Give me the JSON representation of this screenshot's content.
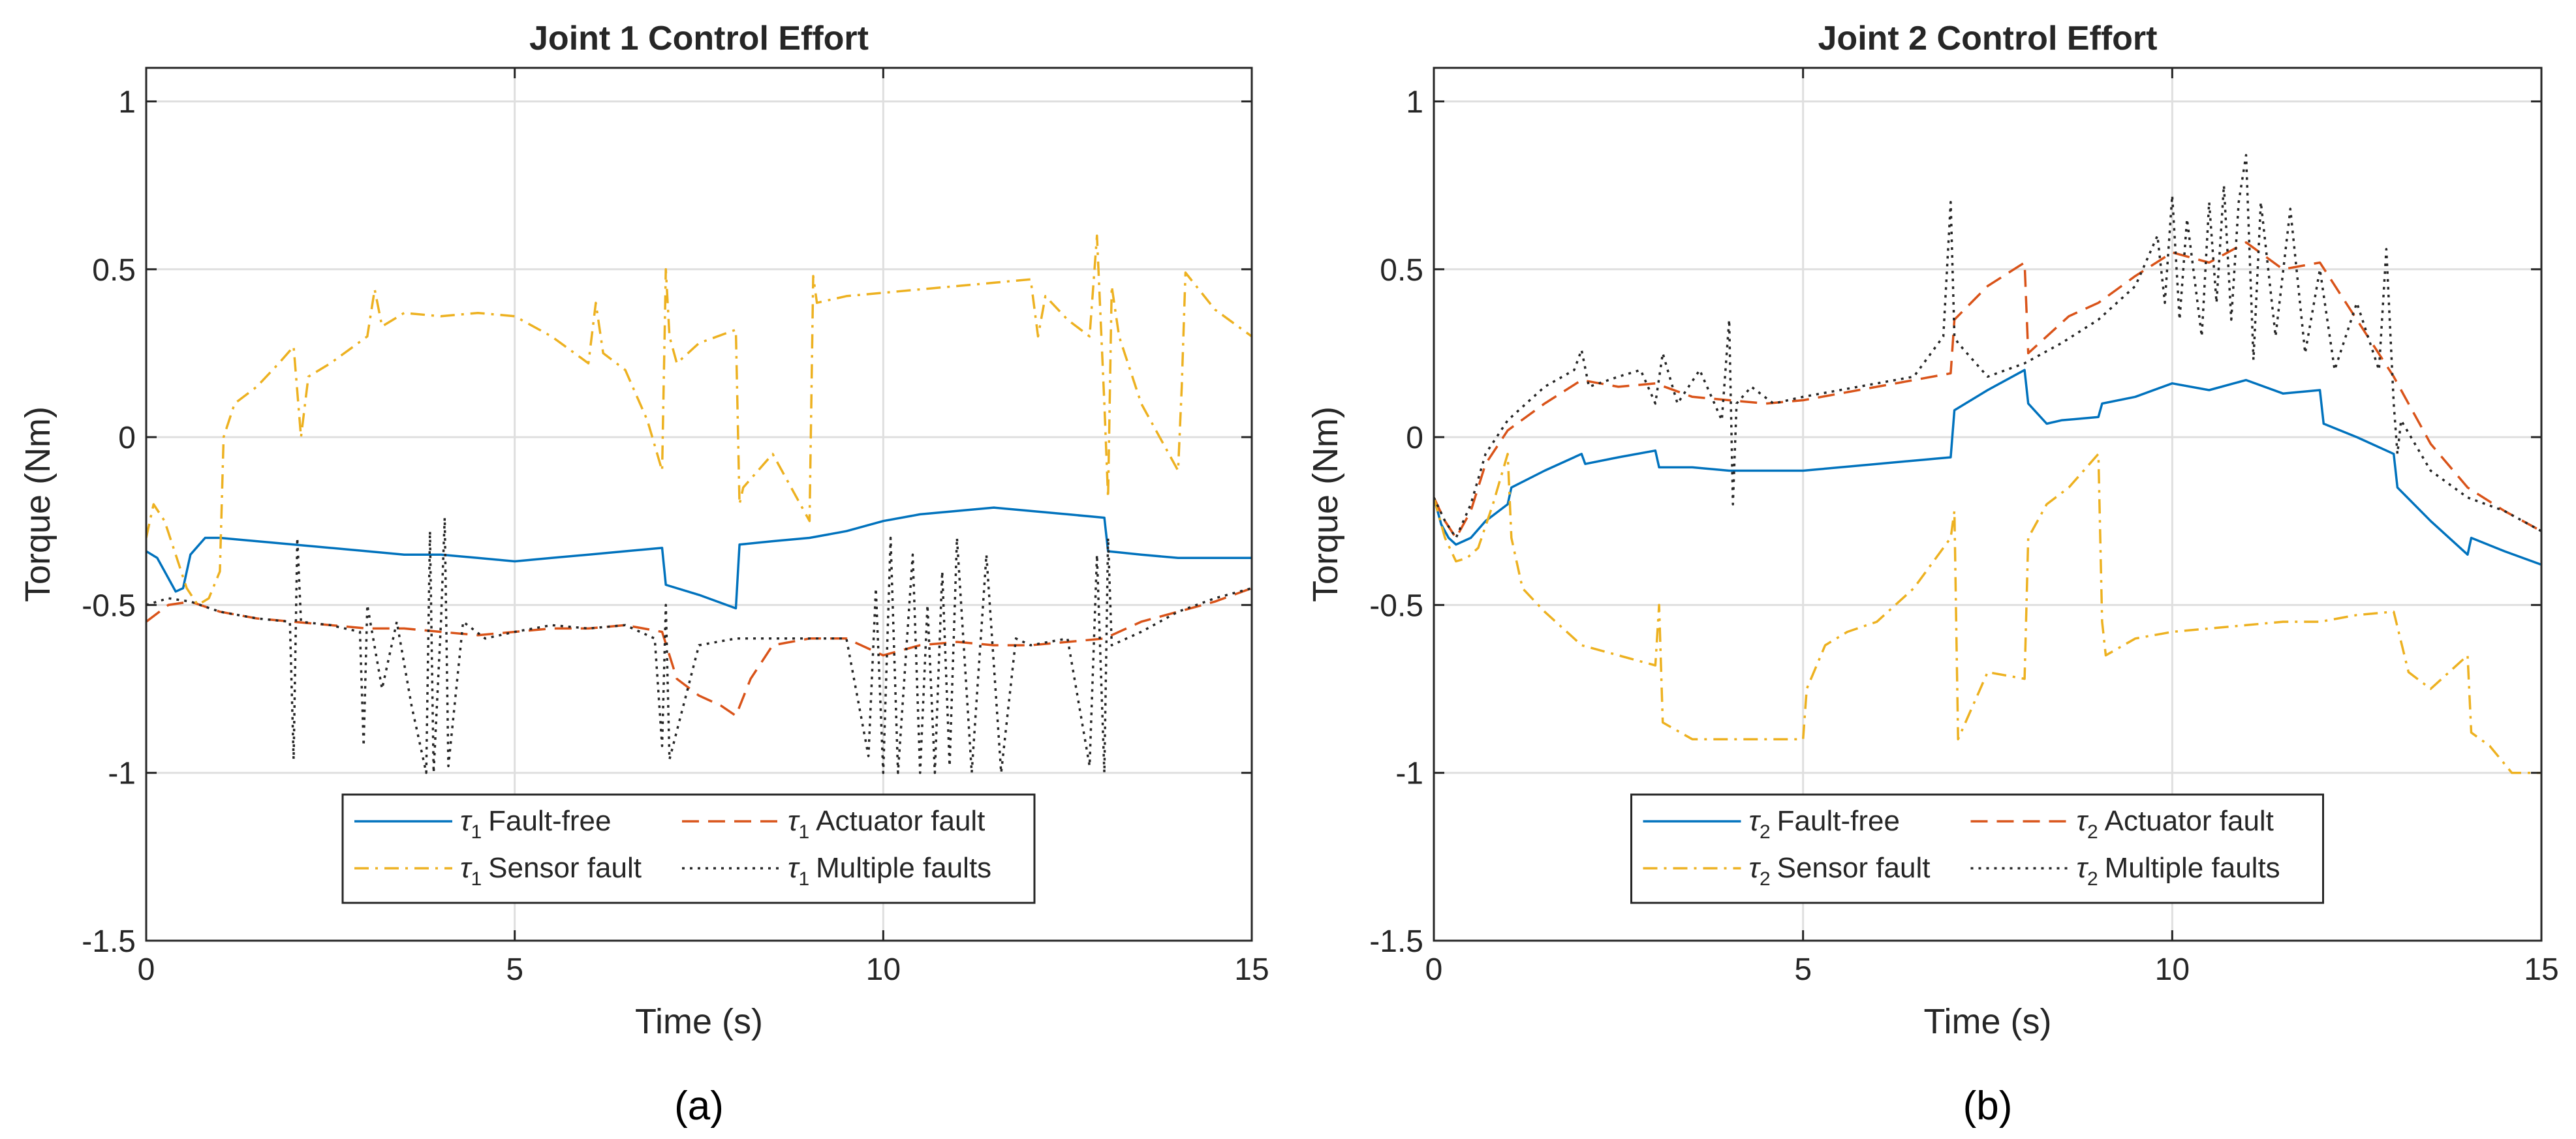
{
  "chart_data": [
    {
      "type": "line",
      "panel_label": "(a)",
      "title": "Joint 1 Control Effort",
      "xlabel": "Time (s)",
      "ylabel": "Torque (Nm)",
      "xlim": [
        0,
        15
      ],
      "ylim": [
        -1.5,
        1.1
      ],
      "xticks": [
        0,
        5,
        10,
        15
      ],
      "yticks": [
        -1.5,
        -1,
        -0.5,
        0,
        0.5,
        1
      ],
      "xtick_labels": [
        "0",
        "5",
        "10",
        "15"
      ],
      "ytick_labels": [
        "-1.5",
        "-1",
        "-0.5",
        "0",
        "0.5",
        "1"
      ],
      "grid": true,
      "legend_position": "bottom-center",
      "series": [
        {
          "name": "τ1 Fault-free",
          "symbol": "τ",
          "subscript": "1",
          "label": "Fault-free",
          "color": "#0072BD",
          "dash": "solid",
          "x": [
            0,
            0.15,
            0.3,
            0.4,
            0.5,
            0.6,
            0.8,
            1.0,
            1.5,
            2.0,
            2.5,
            3.0,
            3.5,
            4.0,
            4.5,
            5.0,
            5.5,
            6.0,
            6.5,
            7.0,
            7.05,
            7.5,
            8.0,
            8.05,
            8.5,
            9.0,
            9.5,
            10.0,
            10.5,
            11.0,
            11.5,
            12.0,
            12.5,
            13.0,
            13.05,
            13.5,
            14.0,
            14.5,
            15.0
          ],
          "y": [
            -0.34,
            -0.36,
            -0.42,
            -0.46,
            -0.45,
            -0.35,
            -0.3,
            -0.3,
            -0.31,
            -0.32,
            -0.33,
            -0.34,
            -0.35,
            -0.35,
            -0.36,
            -0.37,
            -0.36,
            -0.35,
            -0.34,
            -0.33,
            -0.44,
            -0.47,
            -0.51,
            -0.32,
            -0.31,
            -0.3,
            -0.28,
            -0.25,
            -0.23,
            -0.22,
            -0.21,
            -0.22,
            -0.23,
            -0.24,
            -0.34,
            -0.35,
            -0.36,
            -0.36,
            -0.36
          ]
        },
        {
          "name": "τ1 Actuator fault",
          "symbol": "τ",
          "subscript": "1",
          "label": "Actuator fault",
          "color": "#D95319",
          "dash": "dashed",
          "x": [
            0,
            0.3,
            0.6,
            1.0,
            1.5,
            2.0,
            2.5,
            3.0,
            3.5,
            4.0,
            4.5,
            5.0,
            5.5,
            6.0,
            6.5,
            7.0,
            7.2,
            7.5,
            7.8,
            8.0,
            8.2,
            8.5,
            9.0,
            9.5,
            10.0,
            10.5,
            11.0,
            11.5,
            12.0,
            12.5,
            13.0,
            13.5,
            14.0,
            14.5,
            15.0
          ],
          "y": [
            -0.55,
            -0.5,
            -0.49,
            -0.52,
            -0.54,
            -0.55,
            -0.56,
            -0.57,
            -0.57,
            -0.58,
            -0.59,
            -0.58,
            -0.57,
            -0.57,
            -0.56,
            -0.58,
            -0.72,
            -0.77,
            -0.8,
            -0.83,
            -0.72,
            -0.62,
            -0.6,
            -0.6,
            -0.65,
            -0.62,
            -0.61,
            -0.62,
            -0.62,
            -0.61,
            -0.6,
            -0.55,
            -0.52,
            -0.49,
            -0.45
          ]
        },
        {
          "name": "τ1 Sensor fault",
          "symbol": "τ",
          "subscript": "1",
          "label": "Sensor fault",
          "color": "#EDB120",
          "dash": "dashdot",
          "x": [
            0,
            0.1,
            0.25,
            0.4,
            0.55,
            0.7,
            0.85,
            1.0,
            1.05,
            1.2,
            1.5,
            1.8,
            2.0,
            2.1,
            2.2,
            2.5,
            3.0,
            3.1,
            3.2,
            3.5,
            4.0,
            4.5,
            5.0,
            5.5,
            6.0,
            6.1,
            6.2,
            6.5,
            6.8,
            7.0,
            7.05,
            7.1,
            7.2,
            7.5,
            8.0,
            8.05,
            8.1,
            8.5,
            9.0,
            9.05,
            9.1,
            9.5,
            10.0,
            10.5,
            11.0,
            11.5,
            12.0,
            12.1,
            12.2,
            12.5,
            12.8,
            12.9,
            13.0,
            13.05,
            13.1,
            13.2,
            13.5,
            14.0,
            14.05,
            14.1,
            14.5,
            15.0
          ],
          "y": [
            -0.3,
            -0.2,
            -0.25,
            -0.35,
            -0.45,
            -0.5,
            -0.48,
            -0.4,
            0.0,
            0.1,
            0.15,
            0.22,
            0.27,
            0.0,
            0.18,
            0.22,
            0.3,
            0.44,
            0.33,
            0.37,
            0.36,
            0.37,
            0.36,
            0.3,
            0.22,
            0.4,
            0.25,
            0.2,
            0.05,
            -0.1,
            0.5,
            0.3,
            0.22,
            0.28,
            0.32,
            -0.2,
            -0.15,
            -0.05,
            -0.25,
            0.48,
            0.4,
            0.42,
            0.43,
            0.44,
            0.45,
            0.46,
            0.47,
            0.3,
            0.42,
            0.35,
            0.3,
            0.6,
            0.1,
            -0.18,
            0.45,
            0.3,
            0.1,
            -0.1,
            0.15,
            0.49,
            0.38,
            0.3
          ]
        },
        {
          "name": "τ1 Multiple faults",
          "symbol": "τ",
          "subscript": "1",
          "label": "Multiple faults",
          "color": "#262626",
          "dash": "dotted",
          "x": [
            0,
            0.3,
            0.6,
            1.0,
            1.5,
            1.95,
            2.0,
            2.05,
            2.1,
            2.5,
            2.9,
            2.95,
            3.0,
            3.2,
            3.4,
            3.6,
            3.8,
            3.85,
            3.9,
            4.0,
            4.05,
            4.1,
            4.3,
            4.6,
            5.0,
            5.5,
            6.0,
            6.5,
            6.9,
            7.0,
            7.05,
            7.1,
            7.5,
            8.0,
            8.5,
            9.0,
            9.5,
            9.8,
            9.9,
            10.0,
            10.1,
            10.2,
            10.4,
            10.5,
            10.6,
            10.7,
            10.8,
            10.9,
            11.0,
            11.2,
            11.4,
            11.6,
            11.8,
            12.0,
            12.5,
            12.8,
            12.9,
            13.0,
            13.05,
            13.1,
            13.5,
            14.0,
            14.5,
            15.0
          ],
          "y": [
            -0.5,
            -0.48,
            -0.49,
            -0.52,
            -0.54,
            -0.55,
            -0.96,
            -0.3,
            -0.55,
            -0.56,
            -0.58,
            -0.92,
            -0.5,
            -0.75,
            -0.55,
            -0.8,
            -1.0,
            -0.28,
            -1.0,
            -0.55,
            -0.24,
            -0.98,
            -0.55,
            -0.6,
            -0.58,
            -0.56,
            -0.57,
            -0.56,
            -0.6,
            -0.92,
            -0.5,
            -0.96,
            -0.62,
            -0.6,
            -0.6,
            -0.6,
            -0.6,
            -0.95,
            -0.45,
            -1.0,
            -0.3,
            -1.0,
            -0.35,
            -1.0,
            -0.5,
            -1.0,
            -0.4,
            -0.98,
            -0.3,
            -1.0,
            -0.35,
            -1.0,
            -0.6,
            -0.62,
            -0.6,
            -0.98,
            -0.35,
            -1.0,
            -0.3,
            -0.62,
            -0.58,
            -0.52,
            -0.48,
            -0.45
          ]
        }
      ]
    },
    {
      "type": "line",
      "panel_label": "(b)",
      "title": "Joint 2 Control Effort",
      "xlabel": "Time (s)",
      "ylabel": "Torque (Nm)",
      "xlim": [
        0,
        15
      ],
      "ylim": [
        -1.5,
        1.1
      ],
      "xticks": [
        0,
        5,
        10,
        15
      ],
      "yticks": [
        -1.5,
        -1,
        -0.5,
        0,
        0.5,
        1
      ],
      "xtick_labels": [
        "0",
        "5",
        "10",
        "15"
      ],
      "ytick_labels": [
        "-1.5",
        "-1",
        "-0.5",
        "0",
        "0.5",
        "1"
      ],
      "grid": true,
      "legend_position": "bottom-center",
      "series": [
        {
          "name": "τ2 Fault-free",
          "symbol": "τ",
          "subscript": "2",
          "label": "Fault-free",
          "color": "#0072BD",
          "dash": "solid",
          "x": [
            0,
            0.1,
            0.2,
            0.3,
            0.4,
            0.5,
            0.7,
            1.0,
            1.05,
            1.5,
            2.0,
            2.05,
            2.5,
            3.0,
            3.05,
            3.5,
            4.0,
            4.5,
            5.0,
            5.5,
            6.0,
            6.5,
            7.0,
            7.05,
            7.5,
            8.0,
            8.05,
            8.3,
            8.5,
            9.0,
            9.05,
            9.5,
            10.0,
            10.5,
            11.0,
            11.5,
            12.0,
            12.05,
            12.5,
            13.0,
            13.05,
            13.5,
            14.0,
            14.05,
            14.5,
            15.0
          ],
          "y": [
            -0.18,
            -0.26,
            -0.3,
            -0.32,
            -0.31,
            -0.3,
            -0.25,
            -0.2,
            -0.15,
            -0.1,
            -0.05,
            -0.08,
            -0.06,
            -0.04,
            -0.09,
            -0.09,
            -0.1,
            -0.1,
            -0.1,
            -0.09,
            -0.08,
            -0.07,
            -0.06,
            0.08,
            0.14,
            0.2,
            0.1,
            0.04,
            0.05,
            0.06,
            0.1,
            0.12,
            0.16,
            0.14,
            0.17,
            0.13,
            0.14,
            0.04,
            0.0,
            -0.05,
            -0.15,
            -0.25,
            -0.35,
            -0.3,
            -0.34,
            -0.38
          ]
        },
        {
          "name": "τ2 Actuator fault",
          "symbol": "τ",
          "subscript": "2",
          "label": "Actuator fault",
          "color": "#D95319",
          "dash": "dashed",
          "x": [
            0,
            0.15,
            0.3,
            0.5,
            0.7,
            1.0,
            1.5,
            2.0,
            2.5,
            3.0,
            3.5,
            4.0,
            4.5,
            5.0,
            5.5,
            6.0,
            6.5,
            7.0,
            7.05,
            7.5,
            8.0,
            8.05,
            8.3,
            8.6,
            9.0,
            9.5,
            10.0,
            10.5,
            11.0,
            11.5,
            12.0,
            12.5,
            13.0,
            13.5,
            14.0,
            14.5,
            15.0
          ],
          "y": [
            -0.18,
            -0.25,
            -0.3,
            -0.22,
            -0.08,
            0.02,
            0.1,
            0.17,
            0.15,
            0.16,
            0.12,
            0.11,
            0.1,
            0.11,
            0.13,
            0.15,
            0.17,
            0.19,
            0.35,
            0.45,
            0.52,
            0.25,
            0.3,
            0.36,
            0.4,
            0.48,
            0.55,
            0.52,
            0.58,
            0.5,
            0.52,
            0.35,
            0.18,
            -0.02,
            -0.15,
            -0.22,
            -0.28
          ]
        },
        {
          "name": "τ2 Sensor fault",
          "symbol": "τ",
          "subscript": "2",
          "label": "Sensor fault",
          "color": "#EDB120",
          "dash": "dashdot",
          "x": [
            0,
            0.15,
            0.3,
            0.45,
            0.6,
            0.8,
            1.0,
            1.05,
            1.2,
            1.5,
            2.0,
            2.5,
            3.0,
            3.05,
            3.1,
            3.5,
            4.0,
            4.5,
            5.0,
            5.05,
            5.3,
            5.6,
            6.0,
            6.5,
            7.0,
            7.05,
            7.1,
            7.5,
            8.0,
            8.05,
            8.3,
            8.6,
            9.0,
            9.05,
            9.1,
            9.5,
            10.0,
            10.5,
            11.0,
            11.5,
            12.0,
            12.5,
            13.0,
            13.2,
            13.5,
            14.0,
            14.05,
            14.3,
            14.6,
            15.0
          ],
          "y": [
            -0.18,
            -0.3,
            -0.37,
            -0.36,
            -0.33,
            -0.2,
            -0.05,
            -0.3,
            -0.45,
            -0.52,
            -0.62,
            -0.65,
            -0.68,
            -0.5,
            -0.85,
            -0.9,
            -0.9,
            -0.9,
            -0.9,
            -0.75,
            -0.62,
            -0.58,
            -0.55,
            -0.45,
            -0.3,
            -0.22,
            -0.9,
            -0.7,
            -0.72,
            -0.3,
            -0.2,
            -0.15,
            -0.05,
            -0.55,
            -0.65,
            -0.6,
            -0.58,
            -0.57,
            -0.56,
            -0.55,
            -0.55,
            -0.53,
            -0.52,
            -0.7,
            -0.75,
            -0.65,
            -0.88,
            -0.92,
            -1.0,
            -1.0
          ]
        },
        {
          "name": "τ2 Multiple faults",
          "symbol": "τ",
          "subscript": "2",
          "label": "Multiple faults",
          "color": "#262626",
          "dash": "dotted",
          "x": [
            0,
            0.15,
            0.3,
            0.5,
            0.7,
            1.0,
            1.5,
            1.9,
            2.0,
            2.1,
            2.5,
            2.8,
            3.0,
            3.1,
            3.3,
            3.6,
            3.9,
            4.0,
            4.05,
            4.1,
            4.3,
            4.6,
            5.0,
            5.5,
            6.0,
            6.5,
            6.9,
            7.0,
            7.05,
            7.1,
            7.5,
            8.0,
            8.5,
            9.0,
            9.5,
            9.8,
            9.9,
            10.0,
            10.1,
            10.2,
            10.4,
            10.5,
            10.6,
            10.7,
            10.8,
            10.9,
            11.0,
            11.1,
            11.2,
            11.4,
            11.6,
            11.8,
            12.0,
            12.2,
            12.5,
            12.8,
            12.9,
            13.0,
            13.05,
            13.1,
            13.5,
            14.0,
            14.5,
            15.0
          ],
          "y": [
            -0.18,
            -0.25,
            -0.3,
            -0.2,
            -0.05,
            0.05,
            0.15,
            0.2,
            0.26,
            0.15,
            0.18,
            0.2,
            0.1,
            0.25,
            0.1,
            0.2,
            0.05,
            0.35,
            -0.2,
            0.1,
            0.15,
            0.1,
            0.12,
            0.14,
            0.16,
            0.18,
            0.3,
            0.7,
            0.3,
            0.28,
            0.18,
            0.22,
            0.28,
            0.35,
            0.45,
            0.6,
            0.4,
            0.72,
            0.35,
            0.65,
            0.3,
            0.7,
            0.4,
            0.75,
            0.35,
            0.7,
            0.84,
            0.23,
            0.7,
            0.3,
            0.68,
            0.25,
            0.5,
            0.2,
            0.4,
            0.2,
            0.56,
            0.1,
            -0.05,
            0.05,
            -0.1,
            -0.18,
            -0.22,
            -0.28
          ]
        }
      ]
    }
  ]
}
